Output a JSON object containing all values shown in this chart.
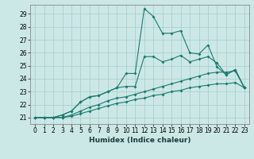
{
  "title": "",
  "xlabel": "Humidex (Indice chaleur)",
  "x_values": [
    0,
    1,
    2,
    3,
    4,
    5,
    6,
    7,
    8,
    9,
    10,
    11,
    12,
    13,
    14,
    15,
    16,
    17,
    18,
    19,
    20,
    21,
    22,
    23
  ],
  "ylim": [
    20.5,
    29.7
  ],
  "xlim": [
    -0.5,
    23.5
  ],
  "yticks": [
    21,
    22,
    23,
    24,
    25,
    26,
    27,
    28,
    29
  ],
  "xticks": [
    0,
    1,
    2,
    3,
    4,
    5,
    6,
    7,
    8,
    9,
    10,
    11,
    12,
    13,
    14,
    15,
    16,
    17,
    18,
    19,
    20,
    21,
    22,
    23
  ],
  "line_color": "#1a7a6e",
  "bg_color": "#cce8e6",
  "grid_color": "#aacfcc",
  "lines": [
    [
      21.0,
      21.0,
      21.0,
      21.2,
      21.5,
      22.2,
      22.6,
      22.7,
      23.0,
      23.3,
      24.4,
      24.4,
      29.4,
      28.8,
      27.5,
      27.5,
      27.7,
      26.0,
      25.9,
      26.6,
      24.9,
      24.3,
      24.7,
      23.3
    ],
    [
      21.0,
      21.0,
      21.0,
      21.2,
      21.5,
      22.2,
      22.6,
      22.7,
      23.0,
      23.3,
      23.4,
      23.4,
      25.7,
      25.7,
      25.3,
      25.5,
      25.8,
      25.3,
      25.5,
      25.7,
      25.2,
      24.3,
      24.7,
      23.3
    ],
    [
      21.0,
      21.0,
      21.0,
      21.0,
      21.2,
      21.5,
      21.8,
      22.0,
      22.3,
      22.5,
      22.6,
      22.8,
      23.0,
      23.2,
      23.4,
      23.6,
      23.8,
      24.0,
      24.2,
      24.4,
      24.5,
      24.5,
      24.6,
      23.3
    ],
    [
      21.0,
      21.0,
      21.0,
      21.0,
      21.1,
      21.3,
      21.5,
      21.7,
      21.9,
      22.1,
      22.2,
      22.4,
      22.5,
      22.7,
      22.8,
      23.0,
      23.1,
      23.3,
      23.4,
      23.5,
      23.6,
      23.6,
      23.7,
      23.3
    ]
  ]
}
